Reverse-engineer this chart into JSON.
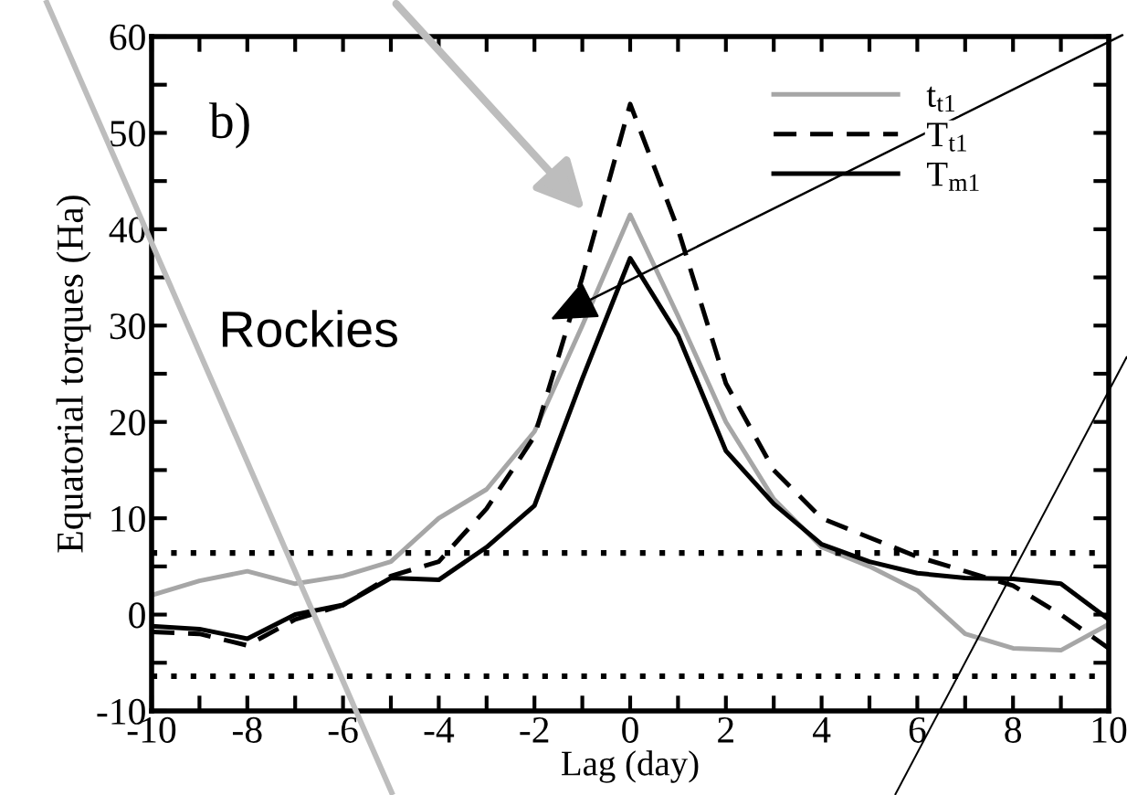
{
  "chart_data": {
    "type": "line",
    "xlabel": "Lag (day)",
    "ylabel": "Equatorial torques (Ha)",
    "x": [
      -10,
      -9,
      -8,
      -7,
      -6,
      -5,
      -4,
      -3,
      -2,
      -1,
      0,
      1,
      2,
      3,
      4,
      5,
      6,
      7,
      8,
      9,
      10
    ],
    "series": [
      {
        "name": "t$_{t1}$",
        "color": "#a6a6a6",
        "line_style": "solid",
        "values": [
          2,
          3.5,
          4.5,
          3.2,
          4,
          5.5,
          10,
          13,
          19,
          30,
          41.5,
          31,
          20,
          12,
          7,
          5,
          2.5,
          -2,
          -3.5,
          -3.7,
          -1
        ]
      },
      {
        "name": "T$_{t1}$",
        "color": "#000000",
        "line_style": "dashed",
        "values": [
          -1.8,
          -2,
          -3.2,
          -0.5,
          1,
          4,
          5.5,
          11,
          18.5,
          35,
          53,
          40,
          24,
          15,
          10,
          8,
          6,
          4.5,
          3,
          0,
          -3.5
        ]
      },
      {
        "name": "T$_{m1}$",
        "color": "#000000",
        "line_style": "solid",
        "values": [
          -1.2,
          -1.5,
          -2.5,
          0,
          1,
          3.8,
          3.6,
          7,
          11.3,
          24.5,
          37,
          29,
          17,
          11.5,
          7.3,
          5.5,
          4.3,
          3.8,
          3.7,
          3.2,
          -0.5
        ]
      }
    ],
    "xlim": [
      -10,
      10
    ],
    "ylim": [
      -10,
      60
    ],
    "xticks": [
      -10,
      {
        "value": -9,
        "label": null
      },
      -8,
      {
        "value": -7,
        "label": null
      },
      -6,
      {
        "value": -5,
        "label": null
      },
      -4,
      {
        "value": -3,
        "label": null
      },
      -2,
      {
        "value": -1,
        "label": null
      },
      0,
      {
        "value": 1,
        "label": null
      },
      2,
      {
        "value": 3,
        "label": null
      },
      4,
      {
        "value": 5,
        "label": null
      },
      6,
      {
        "value": 7,
        "label": null
      },
      8,
      {
        "value": 9,
        "label": null
      },
      10
    ],
    "yticks": [
      -10,
      {
        "value": -5,
        "label": null
      },
      0,
      {
        "value": 5,
        "label": null
      },
      10,
      {
        "value": 15,
        "label": null
      },
      20,
      {
        "value": 25,
        "label": null
      },
      30,
      {
        "value": 35,
        "label": null
      },
      40,
      {
        "value": 45,
        "label": null
      },
      50,
      {
        "value": 55,
        "label": null
      },
      60
    ],
    "ref_lines": [
      {
        "axis": "y",
        "value": 6.4,
        "color": "#000000",
        "line_style": "dotted"
      },
      {
        "axis": "y",
        "value": -6.4,
        "color": "#000000",
        "line_style": "dotted"
      }
    ],
    "annotations": [
      "b)",
      "Rockies"
    ],
    "legend": "top right",
    "grid": false,
    "marker": "none"
  }
}
